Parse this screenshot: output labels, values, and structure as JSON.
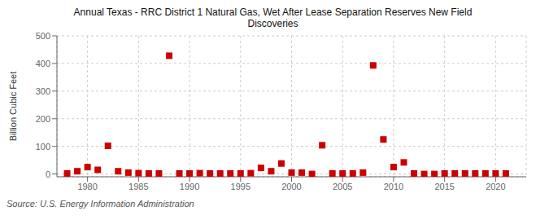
{
  "chart_data": {
    "type": "scatter",
    "title": "Annual Texas - RRC District 1 Natural Gas, Wet After Lease Separation Reserves New Field\nDiscoveries",
    "ylabel": "Billion Cubic Feet",
    "annotation": "Source: U.S. Energy Information Administration",
    "x": [
      1978,
      1979,
      1980,
      1981,
      1982,
      1983,
      1984,
      1985,
      1986,
      1987,
      1988,
      1989,
      1990,
      1991,
      1992,
      1993,
      1994,
      1995,
      1996,
      1997,
      1998,
      1999,
      2000,
      2001,
      2002,
      2003,
      2004,
      2005,
      2006,
      2007,
      2008,
      2009,
      2010,
      2011,
      2012,
      2013,
      2014,
      2015,
      2016,
      2017,
      2018,
      2019,
      2020,
      2021
    ],
    "values": [
      2,
      10,
      25,
      15,
      102,
      10,
      5,
      3,
      2,
      2,
      428,
      2,
      2,
      3,
      2,
      2,
      2,
      2,
      3,
      22,
      10,
      38,
      5,
      5,
      0,
      104,
      2,
      2,
      2,
      5,
      393,
      125,
      25,
      42,
      2,
      0,
      0,
      2,
      2,
      2,
      2,
      2,
      2,
      2
    ],
    "color": "#cc0000",
    "marker": "square",
    "xlim": [
      1977,
      2023
    ],
    "ylim": [
      -10,
      500
    ],
    "xticks": [
      1980,
      1985,
      1990,
      1995,
      2000,
      2005,
      2010,
      2015,
      2020
    ],
    "yticks": [
      0,
      100,
      200,
      300,
      400,
      500
    ],
    "grid": true
  }
}
